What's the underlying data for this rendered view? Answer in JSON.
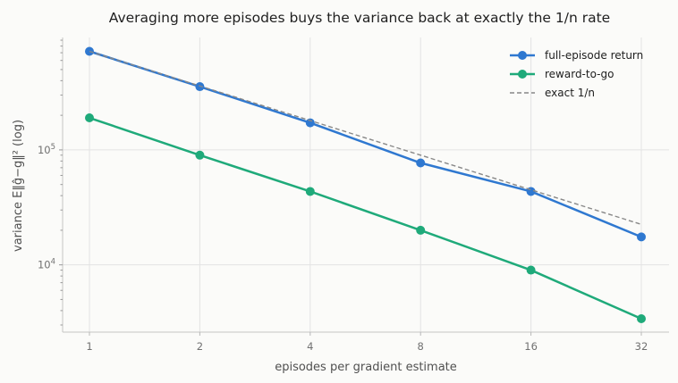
{
  "chart_data": {
    "type": "line",
    "title": "Averaging more episodes buys the variance back at exactly the 1/n rate",
    "xlabel": "episodes per gradient estimate",
    "ylabel": "variance  E‖ĝ−g‖²  (log)",
    "x_scale": "log2",
    "y_scale": "log",
    "categories": [
      "1",
      "2",
      "4",
      "8",
      "16",
      "32"
    ],
    "x": [
      1,
      2,
      4,
      8,
      16,
      32
    ],
    "y_ticks": [
      {
        "value": 10000,
        "base": "10",
        "exp": "4"
      },
      {
        "value": 100000,
        "base": "10",
        "exp": "5"
      }
    ],
    "ylim": [
      2600,
      950000
    ],
    "grid": true,
    "legend_position": "top-right",
    "series": [
      {
        "name": "full-episode return",
        "color": "#2f78d0",
        "style": "solid-marker",
        "values": [
          720000,
          355000,
          172000,
          77000,
          43500,
          17500
        ]
      },
      {
        "name": "reward-to-go",
        "color": "#1faa7a",
        "style": "solid-marker",
        "values": [
          190000,
          90000,
          43500,
          20000,
          9000,
          3400
        ]
      },
      {
        "name": "exact 1/n",
        "color": "#888888",
        "style": "dashed",
        "values": [
          720000,
          360000,
          180000,
          90000,
          45000,
          22500
        ]
      }
    ]
  }
}
